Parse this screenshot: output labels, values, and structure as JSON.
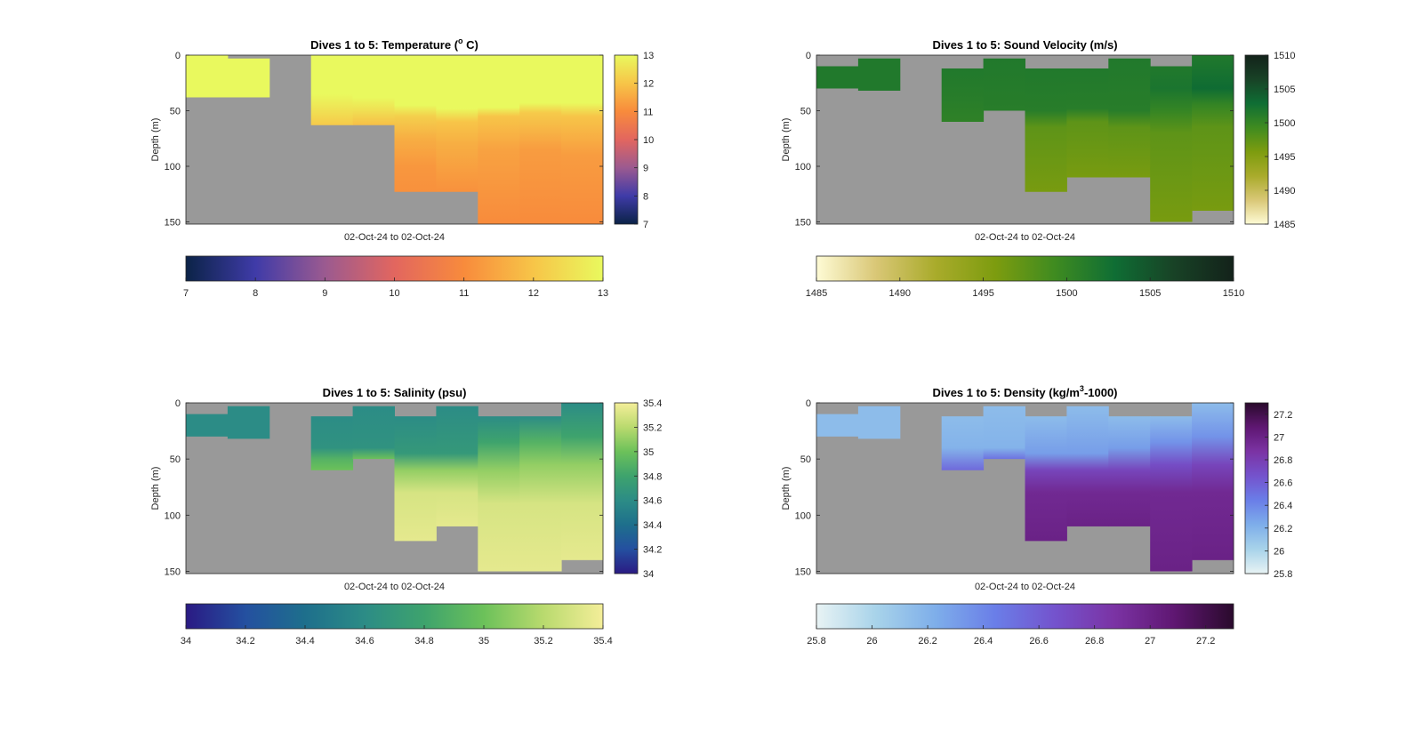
{
  "chart_data": [
    {
      "type": "heatmap",
      "title": "Dives 1 to 5: Temperature (",
      "title_sup": "o",
      "title_after": " C)",
      "xlabel": "02-Oct-24 to 02-Oct-24",
      "ylabel": "Depth (m)",
      "ylim": [
        0,
        152
      ],
      "y_ticks": [
        0,
        50,
        100,
        150
      ],
      "missing_color": "#999999",
      "colorbar": {
        "range": [
          7,
          13
        ],
        "ticks": [
          7,
          8,
          9,
          10,
          11,
          12,
          13
        ],
        "stops": [
          "#0b2347",
          "#3f3ba8",
          "#9b5a90",
          "#e2665f",
          "#f88b3c",
          "#f7c548",
          "#e9f95e"
        ]
      },
      "columns": [
        {
          "top": 0,
          "bottom": 38,
          "stops": [
            [
              0,
              13
            ],
            [
              38,
              13
            ]
          ]
        },
        {
          "top": 3,
          "bottom": 38,
          "stops": [
            [
              3,
              13
            ],
            [
              38,
              13
            ]
          ]
        },
        {
          "top": null,
          "bottom": null,
          "stops": []
        },
        {
          "top": 0,
          "bottom": 63,
          "stops": [
            [
              0,
              13
            ],
            [
              35,
              13
            ],
            [
              48,
              12.6
            ],
            [
              63,
              12.1
            ]
          ]
        },
        {
          "top": 0,
          "bottom": 63,
          "stops": [
            [
              0,
              13
            ],
            [
              38,
              13
            ],
            [
              50,
              12.5
            ],
            [
              63,
              11.9
            ]
          ]
        },
        {
          "top": 0,
          "bottom": 123,
          "stops": [
            [
              0,
              13
            ],
            [
              45,
              13
            ],
            [
              55,
              12.2
            ],
            [
              75,
              11.6
            ],
            [
              100,
              11.2
            ],
            [
              123,
              11.1
            ]
          ]
        },
        {
          "top": 0,
          "bottom": 123,
          "stops": [
            [
              0,
              13
            ],
            [
              48,
              13
            ],
            [
              60,
              12.0
            ],
            [
              80,
              11.6
            ],
            [
              123,
              11.1
            ]
          ]
        },
        {
          "top": 0,
          "bottom": 152,
          "stops": [
            [
              0,
              13
            ],
            [
              47,
              13
            ],
            [
              55,
              12.0
            ],
            [
              85,
              11.4
            ],
            [
              152,
              11.0
            ]
          ]
        },
        {
          "top": 0,
          "bottom": 152,
          "stops": [
            [
              0,
              13
            ],
            [
              43,
              13
            ],
            [
              52,
              12.1
            ],
            [
              85,
              11.3
            ],
            [
              152,
              11.0
            ]
          ]
        },
        {
          "top": 0,
          "bottom": 152,
          "stops": [
            [
              0,
              13
            ],
            [
              43,
              13
            ],
            [
              55,
              12.0
            ],
            [
              90,
              11.3
            ],
            [
              152,
              11.0
            ]
          ]
        }
      ]
    },
    {
      "type": "heatmap",
      "title": "Dives 1 to 5: Sound Velocity (m/s)",
      "xlabel": "02-Oct-24 to 02-Oct-24",
      "ylabel": "Depth (m)",
      "ylim": [
        0,
        152
      ],
      "y_ticks": [
        0,
        50,
        100,
        150
      ],
      "missing_color": "#999999",
      "colorbar": {
        "range": [
          1485,
          1510
        ],
        "ticks": [
          1485,
          1490,
          1495,
          1500,
          1505,
          1510
        ],
        "stops": [
          "#fefbd5",
          "#d9c776",
          "#a9ab2b",
          "#7d9c0f",
          "#3f8b20",
          "#0f6e34",
          "#184226",
          "#13221a"
        ]
      },
      "columns": [
        {
          "top": 10,
          "bottom": 30,
          "stops": [
            [
              10,
              1501.5
            ],
            [
              30,
              1501.5
            ]
          ]
        },
        {
          "top": 3,
          "bottom": 32,
          "stops": [
            [
              3,
              1501.5
            ],
            [
              32,
              1501.5
            ]
          ]
        },
        {
          "top": null,
          "bottom": null,
          "stops": []
        },
        {
          "top": 12,
          "bottom": 60,
          "stops": [
            [
              12,
              1501.5
            ],
            [
              40,
              1501
            ],
            [
              60,
              1500.5
            ]
          ]
        },
        {
          "top": 3,
          "bottom": 50,
          "stops": [
            [
              3,
              1501.5
            ],
            [
              50,
              1501
            ]
          ]
        },
        {
          "top": 12,
          "bottom": 123,
          "stops": [
            [
              12,
              1501.5
            ],
            [
              50,
              1501
            ],
            [
              65,
              1497.5
            ],
            [
              123,
              1496
            ]
          ]
        },
        {
          "top": 12,
          "bottom": 110,
          "stops": [
            [
              12,
              1501.5
            ],
            [
              48,
              1501
            ],
            [
              60,
              1497.5
            ],
            [
              110,
              1496
            ]
          ]
        },
        {
          "top": 3,
          "bottom": 110,
          "stops": [
            [
              3,
              1501.5
            ],
            [
              50,
              1501
            ],
            [
              65,
              1497.5
            ],
            [
              110,
              1496
            ]
          ]
        },
        {
          "top": 10,
          "bottom": 150,
          "stops": [
            [
              10,
              1501.5
            ],
            [
              30,
              1502
            ],
            [
              50,
              1500
            ],
            [
              70,
              1497.5
            ],
            [
              150,
              1496
            ]
          ]
        },
        {
          "top": 0,
          "bottom": 140,
          "stops": [
            [
              0,
              1501.5
            ],
            [
              30,
              1503
            ],
            [
              45,
              1500
            ],
            [
              65,
              1497.5
            ],
            [
              140,
              1496
            ]
          ]
        }
      ]
    },
    {
      "type": "heatmap",
      "title": "Dives 1 to 5: Salinity (psu)",
      "xlabel": "02-Oct-24 to 02-Oct-24",
      "ylabel": "Depth (m)",
      "ylim": [
        0,
        152
      ],
      "y_ticks": [
        0,
        50,
        100,
        150
      ],
      "missing_color": "#999999",
      "colorbar": {
        "range": [
          34,
          35.4
        ],
        "ticks": [
          34,
          34.2,
          34.4,
          34.6,
          34.8,
          35,
          35.2,
          35.4
        ],
        "stops": [
          "#2a1a83",
          "#2450a0",
          "#1e6f8c",
          "#2c8c86",
          "#3ea36d",
          "#6cc15a",
          "#b9da6e",
          "#f4ee99"
        ]
      },
      "columns": [
        {
          "top": 10,
          "bottom": 30,
          "stops": [
            [
              10,
              34.6
            ],
            [
              30,
              34.6
            ]
          ]
        },
        {
          "top": 3,
          "bottom": 32,
          "stops": [
            [
              3,
              34.6
            ],
            [
              32,
              34.6
            ]
          ]
        },
        {
          "top": null,
          "bottom": null,
          "stops": []
        },
        {
          "top": 12,
          "bottom": 60,
          "stops": [
            [
              12,
              34.6
            ],
            [
              40,
              34.65
            ],
            [
              50,
              34.9
            ],
            [
              60,
              35.0
            ]
          ]
        },
        {
          "top": 3,
          "bottom": 50,
          "stops": [
            [
              3,
              34.6
            ],
            [
              40,
              34.65
            ],
            [
              50,
              35.0
            ]
          ]
        },
        {
          "top": 12,
          "bottom": 123,
          "stops": [
            [
              12,
              34.6
            ],
            [
              45,
              34.7
            ],
            [
              60,
              35.1
            ],
            [
              80,
              35.3
            ],
            [
              123,
              35.35
            ]
          ]
        },
        {
          "top": 3,
          "bottom": 110,
          "stops": [
            [
              3,
              34.6
            ],
            [
              45,
              34.7
            ],
            [
              60,
              35.1
            ],
            [
              80,
              35.3
            ],
            [
              110,
              35.35
            ]
          ]
        },
        {
          "top": 12,
          "bottom": 150,
          "stops": [
            [
              12,
              34.6
            ],
            [
              35,
              34.8
            ],
            [
              60,
              35.1
            ],
            [
              90,
              35.3
            ],
            [
              150,
              35.35
            ]
          ]
        },
        {
          "top": 12,
          "bottom": 150,
          "stops": [
            [
              12,
              34.6
            ],
            [
              35,
              34.9
            ],
            [
              55,
              35.1
            ],
            [
              90,
              35.3
            ],
            [
              150,
              35.35
            ]
          ]
        },
        {
          "top": 0,
          "bottom": 140,
          "stops": [
            [
              0,
              34.6
            ],
            [
              30,
              34.8
            ],
            [
              55,
              35.1
            ],
            [
              90,
              35.3
            ],
            [
              140,
              35.35
            ]
          ]
        }
      ]
    },
    {
      "type": "heatmap",
      "title": "Dives 1 to 5: Density (kg/m",
      "title_sup": "3",
      "title_after": "-1000)",
      "xlabel": "02-Oct-24 to 02-Oct-24",
      "ylabel": "Depth (m)",
      "ylim": [
        0,
        152
      ],
      "y_ticks": [
        0,
        50,
        100,
        150
      ],
      "missing_color": "#999999",
      "colorbar": {
        "range": [
          25.8,
          27.3
        ],
        "ticks": [
          25.8,
          26,
          26.2,
          26.4,
          26.6,
          26.8,
          27,
          27.2
        ],
        "stops": [
          "#e8f3f4",
          "#a8d3ea",
          "#7eaeea",
          "#6a7ee8",
          "#7453cd",
          "#7b33a4",
          "#5f1772",
          "#2a0a2c"
        ]
      },
      "columns": [
        {
          "top": 10,
          "bottom": 30,
          "stops": [
            [
              10,
              26.15
            ],
            [
              30,
              26.15
            ]
          ]
        },
        {
          "top": 3,
          "bottom": 32,
          "stops": [
            [
              3,
              26.15
            ],
            [
              32,
              26.15
            ]
          ]
        },
        {
          "top": null,
          "bottom": null,
          "stops": []
        },
        {
          "top": 12,
          "bottom": 60,
          "stops": [
            [
              12,
              26.15
            ],
            [
              40,
              26.2
            ],
            [
              60,
              26.55
            ]
          ]
        },
        {
          "top": 3,
          "bottom": 50,
          "stops": [
            [
              3,
              26.15
            ],
            [
              40,
              26.2
            ],
            [
              50,
              26.5
            ]
          ]
        },
        {
          "top": 12,
          "bottom": 123,
          "stops": [
            [
              12,
              26.15
            ],
            [
              45,
              26.3
            ],
            [
              60,
              26.75
            ],
            [
              80,
              26.95
            ],
            [
              123,
              27.0
            ]
          ]
        },
        {
          "top": 3,
          "bottom": 110,
          "stops": [
            [
              3,
              26.15
            ],
            [
              45,
              26.3
            ],
            [
              60,
              26.75
            ],
            [
              80,
              26.95
            ],
            [
              110,
              27.0
            ]
          ]
        },
        {
          "top": 12,
          "bottom": 110,
          "stops": [
            [
              12,
              26.15
            ],
            [
              40,
              26.3
            ],
            [
              60,
              26.75
            ],
            [
              80,
              26.95
            ],
            [
              110,
              27.0
            ]
          ]
        },
        {
          "top": 12,
          "bottom": 150,
          "stops": [
            [
              12,
              26.15
            ],
            [
              35,
              26.35
            ],
            [
              55,
              26.7
            ],
            [
              80,
              26.95
            ],
            [
              150,
              27.0
            ]
          ]
        },
        {
          "top": 0,
          "bottom": 140,
          "stops": [
            [
              0,
              26.15
            ],
            [
              30,
              26.35
            ],
            [
              55,
              26.75
            ],
            [
              80,
              26.95
            ],
            [
              140,
              27.0
            ]
          ]
        }
      ]
    }
  ]
}
